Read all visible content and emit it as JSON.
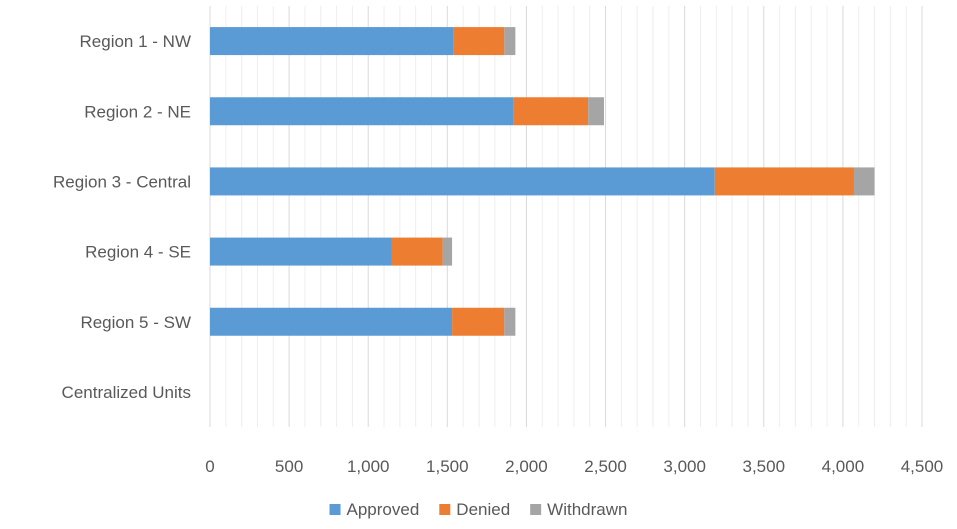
{
  "chart_data": {
    "type": "bar",
    "orientation": "horizontal",
    "stacked": true,
    "categories": [
      "Region 1 - NW",
      "Region 2 - NE",
      "Region 3 - Central",
      "Region 4 - SE",
      "Region 5 - SW",
      "Centralized Units"
    ],
    "series": [
      {
        "name": "Approved",
        "color": "#5B9BD5",
        "values": [
          1540,
          1920,
          3190,
          1150,
          1530,
          0
        ]
      },
      {
        "name": "Denied",
        "color": "#ED7D31",
        "values": [
          320,
          470,
          880,
          320,
          330,
          0
        ]
      },
      {
        "name": "Withdrawn",
        "color": "#A5A5A5",
        "values": [
          70,
          100,
          130,
          60,
          70,
          0
        ]
      }
    ],
    "xlim": [
      0,
      4500
    ],
    "x_ticks": [
      0,
      500,
      1000,
      1500,
      2000,
      2500,
      3000,
      3500,
      4000,
      4500
    ],
    "x_tick_labels": [
      "0",
      "500",
      "1,000",
      "1,500",
      "2,000",
      "2,500",
      "3,000",
      "3,500",
      "4,000",
      "4,500"
    ],
    "minor_gridline_step": 100,
    "grid": true,
    "legend_position": "bottom"
  }
}
